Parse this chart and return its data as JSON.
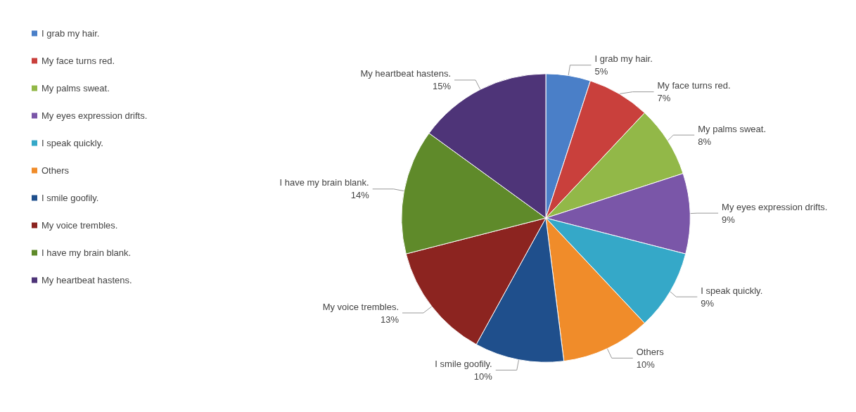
{
  "chart_data": {
    "type": "pie",
    "categories": [
      "I grab my hair.",
      "My face turns red.",
      "My palms sweat.",
      "My eyes expression drifts.",
      "I speak quickly.",
      "Others",
      "I smile goofily.",
      "My voice trembles.",
      "I have my brain blank.",
      "My heartbeat hastens."
    ],
    "values": [
      5,
      7,
      8,
      9,
      9,
      10,
      10,
      13,
      14,
      15
    ],
    "colors": [
      "#4a7fc8",
      "#c9403c",
      "#92b848",
      "#7a56a8",
      "#35a8c8",
      "#f08c2a",
      "#1f4f8c",
      "#8c2420",
      "#5f8a2a",
      "#4e3478"
    ],
    "value_labels": [
      "5%",
      "7%",
      "8%",
      "9%",
      "9%",
      "10%",
      "10%",
      "13%",
      "14%",
      "15%"
    ],
    "legend": "left"
  }
}
